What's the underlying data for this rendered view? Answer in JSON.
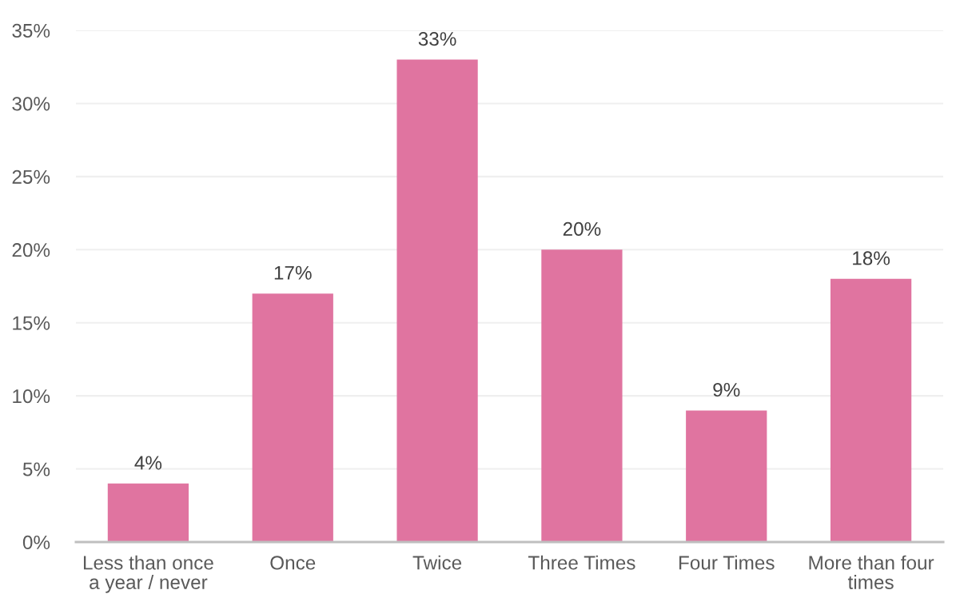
{
  "chart_data": {
    "type": "bar",
    "categories": [
      "Less than once a year / never",
      "Once",
      "Twice",
      "Three Times",
      "Four Times",
      "More than four times"
    ],
    "values": [
      4,
      17,
      33,
      20,
      9,
      18
    ],
    "value_labels": [
      "4%",
      "17%",
      "33%",
      "20%",
      "9%",
      "18%"
    ],
    "color": "#e074a0",
    "ylim": [
      0,
      35
    ],
    "yticks": [
      {
        "value": 0,
        "label": "0%"
      },
      {
        "value": 5,
        "label": "5%"
      },
      {
        "value": 10,
        "label": "10%"
      },
      {
        "value": 15,
        "label": "15%"
      },
      {
        "value": 20,
        "label": "20%"
      },
      {
        "value": 25,
        "label": "25%"
      },
      {
        "value": 30,
        "label": "30%"
      },
      {
        "value": 35,
        "label": "35%"
      }
    ],
    "grid": "y"
  }
}
